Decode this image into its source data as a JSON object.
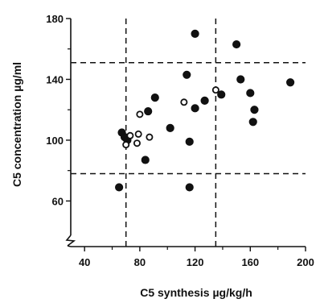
{
  "chart_data": {
    "type": "scatter",
    "title": "",
    "xlabel": "C5 synthesis  µg/kg/h",
    "ylabel": "C5 concentration µg/ml",
    "xlim": [
      30,
      200
    ],
    "ylim": [
      30,
      180
    ],
    "x_ticks": [
      40,
      80,
      120,
      160,
      200
    ],
    "y_ticks": [
      60,
      100,
      140,
      180
    ],
    "y_axis_break_at": 30,
    "grid": false,
    "reference_lines": {
      "vertical": [
        70,
        135
      ],
      "horizontal": [
        78,
        151
      ]
    },
    "series": [
      {
        "marker": "filled",
        "points": [
          [
            65,
            69
          ],
          [
            67,
            105
          ],
          [
            69,
            102
          ],
          [
            71,
            100
          ],
          [
            84,
            87
          ],
          [
            86,
            119
          ],
          [
            91,
            128
          ],
          [
            102,
            108
          ],
          [
            114,
            143
          ],
          [
            116,
            99
          ],
          [
            116,
            69
          ],
          [
            120,
            121
          ],
          [
            120,
            170
          ],
          [
            127,
            126
          ],
          [
            139,
            130
          ],
          [
            150,
            163
          ],
          [
            153,
            140
          ],
          [
            160,
            131
          ],
          [
            163,
            120
          ],
          [
            162,
            112
          ],
          [
            189,
            138
          ]
        ]
      },
      {
        "marker": "open",
        "points": [
          [
            70,
            97
          ],
          [
            73,
            103
          ],
          [
            78,
            98
          ],
          [
            79,
            104
          ],
          [
            80,
            117
          ],
          [
            87,
            102
          ],
          [
            112,
            125
          ],
          [
            135,
            133
          ]
        ]
      }
    ]
  }
}
